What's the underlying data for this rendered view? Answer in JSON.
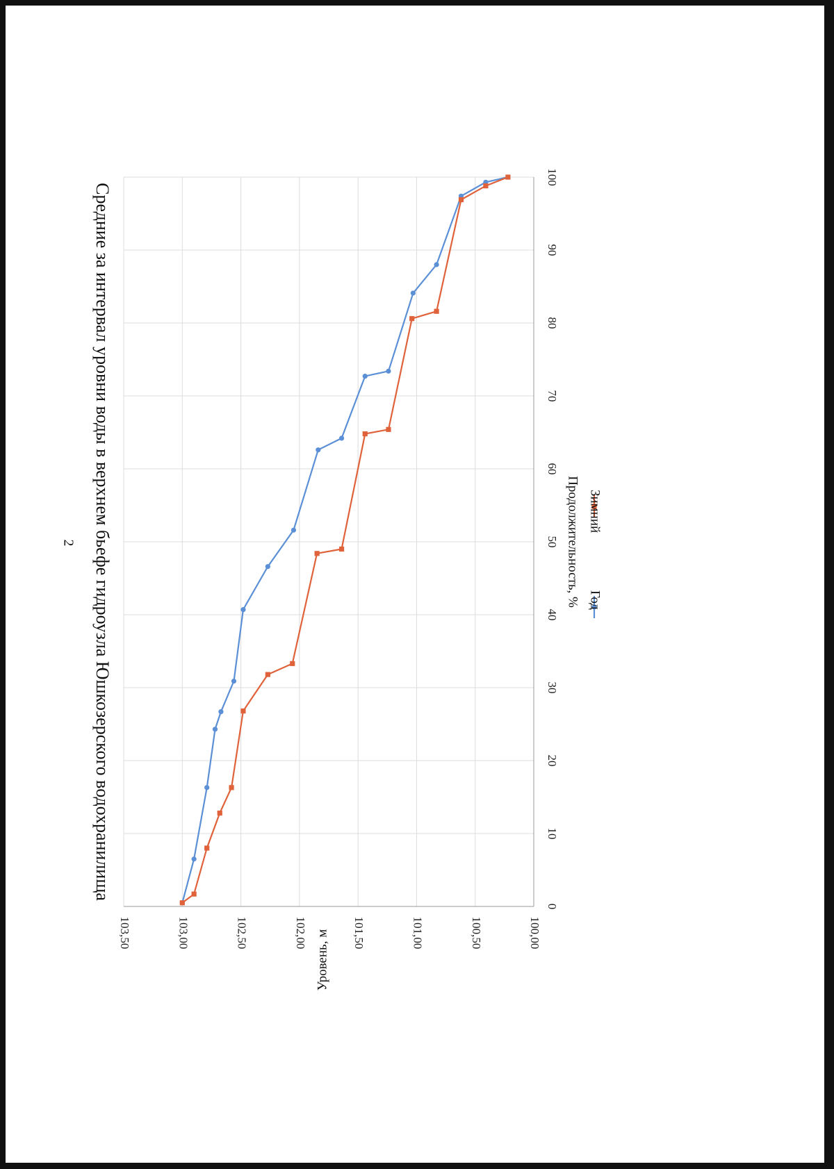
{
  "page": {
    "number": "2"
  },
  "chart_data": {
    "type": "line",
    "title": "Средние за интервал уровни воды в верхнем бьефе гидроузла Юшкозерского водохранилища",
    "xlabel": "Продолжительность, %",
    "ylabel": "Уровень, м",
    "xlim": [
      0,
      100
    ],
    "ylim": [
      100.0,
      103.5
    ],
    "x_ticks": [
      "0",
      "10",
      "20",
      "30",
      "40",
      "50",
      "60",
      "70",
      "80",
      "90",
      "100"
    ],
    "y_ticks": [
      "100,00",
      "100,50",
      "101,00",
      "101,50",
      "102,00",
      "102,50",
      "103,00",
      "103,50"
    ],
    "grid": true,
    "legend_position": "bottom",
    "series": [
      {
        "name": "Год",
        "color": "#5B8FD6",
        "marker": "circle",
        "x": [
          0.5,
          6.5,
          16.3,
          24.3,
          26.7,
          30.9,
          40.7,
          46.6,
          51.6,
          62.6,
          64.2,
          72.7,
          73.4,
          84.1,
          88.0,
          97.4,
          99.3,
          100.0
        ],
        "y": [
          103.0,
          102.9,
          102.79,
          102.72,
          102.67,
          102.56,
          102.48,
          102.27,
          102.05,
          101.84,
          101.64,
          101.44,
          101.24,
          101.03,
          100.83,
          100.62,
          100.41,
          100.22
        ]
      },
      {
        "name": "Зимний",
        "color": "#E0623A",
        "marker": "square",
        "x": [
          0.5,
          1.7,
          8.0,
          12.8,
          16.3,
          26.8,
          31.8,
          33.3,
          48.4,
          49.0,
          64.8,
          65.4,
          80.6,
          81.6,
          96.9,
          98.8,
          100.0
        ],
        "y": [
          103.0,
          102.9,
          102.79,
          102.68,
          102.58,
          102.48,
          102.27,
          102.06,
          101.85,
          101.64,
          101.44,
          101.24,
          101.04,
          100.83,
          100.62,
          100.41,
          100.22
        ]
      }
    ]
  }
}
